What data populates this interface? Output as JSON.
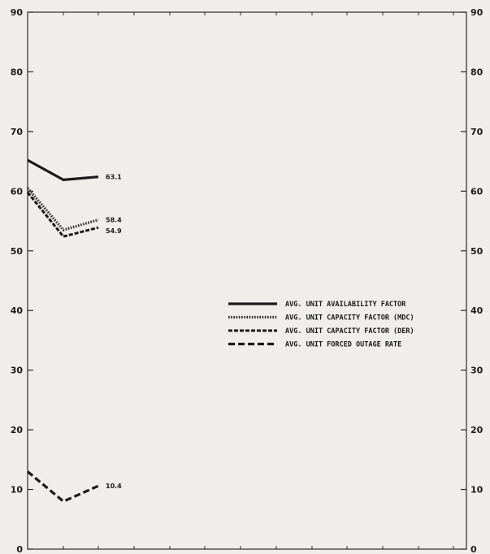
{
  "chart_data": {
    "type": "line",
    "x": [
      1,
      2,
      3
    ],
    "ylim": [
      0,
      90
    ],
    "yticks": [
      0,
      10,
      20,
      30,
      40,
      50,
      60,
      70,
      80,
      90
    ],
    "ytick_labels": [
      "0",
      "10",
      "20",
      "30",
      "40",
      "50",
      "60",
      "70",
      "80",
      "90"
    ],
    "right_axis_ticks": [
      0,
      10,
      20,
      30,
      40,
      50,
      60,
      70,
      80,
      90
    ],
    "right_axis_tick_labels": [
      "0",
      "10",
      "20",
      "30",
      "40",
      "50",
      "60",
      "70",
      "80",
      "90"
    ],
    "grid": false,
    "legend_position": "center-right",
    "series": [
      {
        "name": "AVG. UNIT AVAILABILITY FACTOR",
        "values": [
          65.2,
          61.9,
          62.4
        ],
        "end_label": "63.1",
        "style": "solid",
        "color": "#1a1a1a"
      },
      {
        "name": "AVG. UNIT CAPACITY FACTOR (MDC)",
        "values": [
          60.5,
          53.5,
          55.2
        ],
        "end_label": "58.4",
        "style": "dotted",
        "color": "#2a2a2a"
      },
      {
        "name": "AVG. UNIT CAPACITY FACTOR (DER)",
        "values": [
          59.8,
          52.4,
          53.9
        ],
        "end_label": "54.9",
        "style": "dashed-fine",
        "color": "#1a1a1a"
      },
      {
        "name": "AVG. UNIT FORCED OUTAGE RATE",
        "values": [
          13.0,
          8.0,
          10.6
        ],
        "end_label": "10.4",
        "style": "dashed-heavy",
        "color": "#1a1a1a"
      }
    ]
  }
}
